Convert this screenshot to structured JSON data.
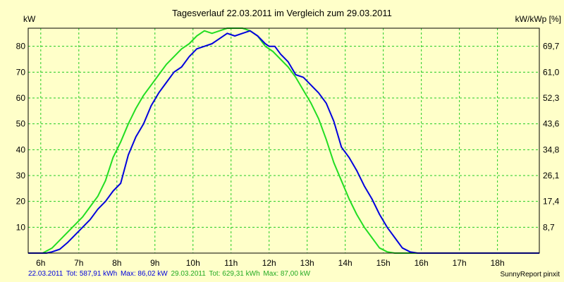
{
  "chart_data": {
    "type": "line",
    "title": "Tagesverlauf 22.03.2011 im Vergleich zum 29.03.2011",
    "ylabel": "kW",
    "ylabel_right": "kW/kWp [%]",
    "x_ticks": [
      "6h",
      "7h",
      "8h",
      "9h",
      "10h",
      "11h",
      "12h",
      "13h",
      "14h",
      "15h",
      "16h",
      "17h",
      "18h"
    ],
    "xlim": [
      5.67,
      19.1
    ],
    "ylim": [
      0,
      87
    ],
    "y_ticks": [
      10,
      20,
      30,
      40,
      50,
      60,
      70,
      80
    ],
    "y2_ticks": [
      "8,7",
      "17,4",
      "26,1",
      "34,8",
      "43,6",
      "52,3",
      "61,0",
      "69,7"
    ],
    "grid": true,
    "series": [
      {
        "name": "22.03.2011",
        "color": "#0000dd",
        "x": [
          5.67,
          6.15,
          6.3,
          6.5,
          6.7,
          6.9,
          7.1,
          7.3,
          7.5,
          7.7,
          7.9,
          8.1,
          8.3,
          8.5,
          8.7,
          8.9,
          9.1,
          9.3,
          9.5,
          9.7,
          9.9,
          10.1,
          10.3,
          10.5,
          10.7,
          10.9,
          11.1,
          11.3,
          11.5,
          11.7,
          11.9,
          12.0,
          12.15,
          12.3,
          12.5,
          12.7,
          12.9,
          13.1,
          13.3,
          13.5,
          13.7,
          13.9,
          14.1,
          14.3,
          14.5,
          14.7,
          14.9,
          15.1,
          15.3,
          15.5,
          15.7,
          15.9,
          16.1,
          16.3,
          16.5,
          16.7,
          16.9,
          17.1,
          17.3,
          17.5,
          17.7,
          17.9,
          18.1,
          18.3,
          18.5,
          19.1
        ],
        "y": [
          0,
          0,
          0.5,
          1.5,
          4,
          7,
          10,
          13,
          17,
          20,
          24,
          27,
          38,
          45,
          50,
          57,
          62,
          66,
          70,
          72,
          76,
          79,
          80,
          81,
          83,
          85,
          84,
          85,
          86,
          84,
          81,
          80,
          80,
          77,
          74,
          69,
          68,
          65,
          62,
          58,
          51,
          41,
          37,
          32,
          26,
          21,
          15,
          10,
          6,
          2,
          0.5,
          0,
          0,
          0,
          0,
          0,
          0,
          0,
          0,
          0,
          0,
          0,
          0,
          0,
          0,
          0
        ],
        "tot_label": "Tot: 587,91 kWh",
        "max_label": "Max: 86,02 kW"
      },
      {
        "name": "29.03.2011",
        "color": "#22dd22",
        "x": [
          5.67,
          6.05,
          6.3,
          6.5,
          6.7,
          6.9,
          7.1,
          7.3,
          7.5,
          7.7,
          7.9,
          8.1,
          8.3,
          8.5,
          8.7,
          8.9,
          9.1,
          9.3,
          9.5,
          9.7,
          9.9,
          10.1,
          10.3,
          10.5,
          10.7,
          10.9,
          11.1,
          11.3,
          11.5,
          11.7,
          11.9,
          12.1,
          12.3,
          12.5,
          12.7,
          12.9,
          13.1,
          13.3,
          13.5,
          13.7,
          13.9,
          14.1,
          14.3,
          14.5,
          14.7,
          14.9,
          15.1,
          15.3,
          15.5,
          15.7,
          15.9,
          16.1,
          16.3,
          16.5,
          16.7,
          16.9,
          17.1,
          17.3,
          17.5,
          17.7,
          17.9,
          18.1,
          18.3,
          18.5,
          19.1
        ],
        "y": [
          0,
          0,
          2,
          5,
          8,
          11,
          14,
          18,
          22,
          28,
          37,
          43,
          50,
          56,
          61,
          65,
          69,
          73,
          76,
          79,
          81,
          84,
          86,
          85,
          86,
          87,
          87,
          87,
          86,
          84,
          80,
          78,
          75,
          72,
          68,
          63,
          58,
          52,
          44,
          35,
          28,
          21,
          15,
          10,
          6,
          2,
          0.5,
          0,
          0,
          0,
          0,
          0,
          0,
          0,
          0,
          0,
          0,
          0,
          0,
          0,
          0,
          0,
          0,
          0,
          0
        ],
        "tot_label": "Tot: 629,31 kWh",
        "max_label": "Max: 87,00 kW"
      }
    ]
  },
  "footer_brand": "SunnyReport pinxit"
}
